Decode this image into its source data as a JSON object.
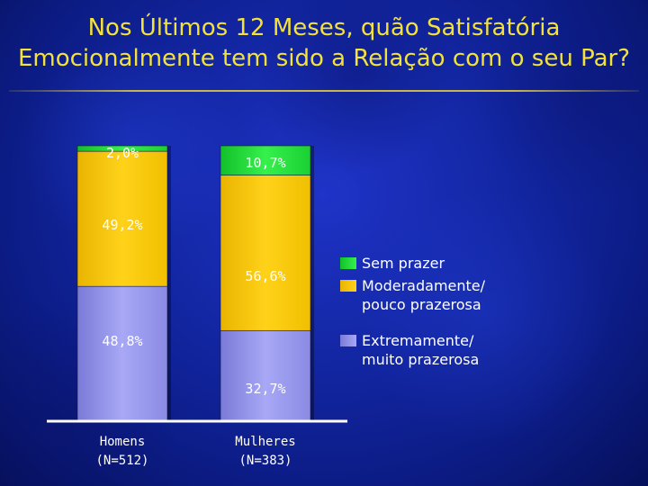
{
  "title_line1": "Nos Últimos 12 Meses, quão Satisfatória",
  "title_line2": "Emocionalmente tem sido a Relação com o seu Par?",
  "colors": {
    "title": "#f2e23a",
    "sem_prazer": "#22dd3a",
    "moderadamente": "#f7c800",
    "extremamente": "#9c9cf0"
  },
  "chart_data": {
    "type": "bar",
    "stacked": true,
    "categories": [
      "Homens\n(N=512)",
      "Mulheres\n(N=383)"
    ],
    "ylim": [
      0,
      100
    ],
    "grid": false,
    "legend_position": "right",
    "series": [
      {
        "name": "Extremamente/ muito prazerosa",
        "values": [
          48.8,
          32.7
        ],
        "labels": [
          "48,8%",
          "32,7%"
        ],
        "color": "#9c9cf0"
      },
      {
        "name": "Moderadamente/ pouco prazerosa",
        "values": [
          49.2,
          56.6
        ],
        "labels": [
          "49,2%",
          "56,6%"
        ],
        "color": "#f7c800"
      },
      {
        "name": "Sem prazer",
        "values": [
          2.0,
          10.7
        ],
        "labels": [
          "2,0%",
          "10,7%"
        ],
        "color": "#22dd3a"
      }
    ]
  },
  "legend": {
    "items": [
      {
        "line1": "Sem prazer",
        "line2": "",
        "color": "#22dd3a"
      },
      {
        "line1": "Moderadamente/",
        "line2": "pouco prazerosa",
        "color": "#f7c800"
      },
      {
        "line1": "Extremamente/",
        "line2": "muito prazerosa",
        "color": "#9c9cf0"
      }
    ]
  }
}
